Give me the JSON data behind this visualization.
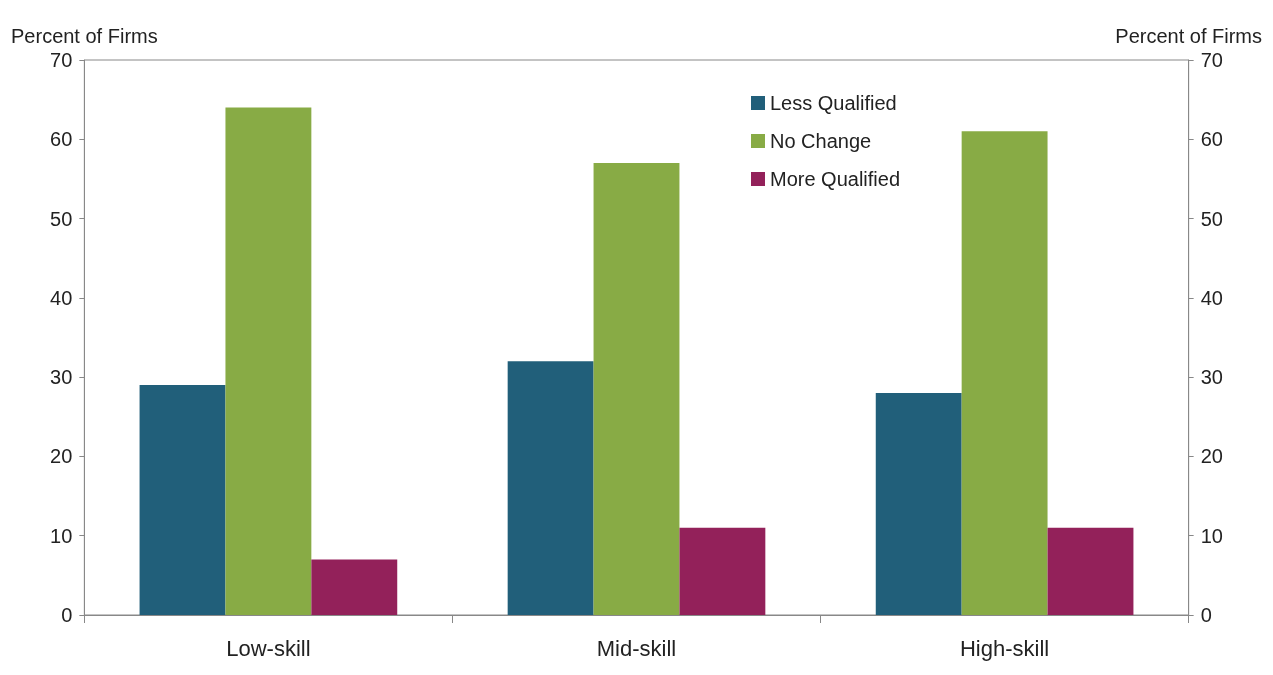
{
  "chart_data": {
    "type": "bar",
    "ylabel": "Percent of Firms",
    "y2label": "Percent of Firms",
    "categories": [
      "Low-skill",
      "Mid-skill",
      "High-skill"
    ],
    "series": [
      {
        "name": "Less Qualified",
        "color": "#215f7a",
        "values": [
          29,
          32,
          28
        ]
      },
      {
        "name": "No Change",
        "color": "#88ab45",
        "values": [
          64,
          57,
          61
        ]
      },
      {
        "name": "More Qualified",
        "color": "#93215a",
        "values": [
          7,
          11,
          11
        ]
      }
    ],
    "ylim": [
      0,
      70
    ],
    "yticks": [
      0,
      10,
      20,
      30,
      40,
      50,
      60,
      70
    ],
    "y2lim": [
      0,
      70
    ],
    "y2ticks": [
      0,
      10,
      20,
      30,
      40,
      50,
      60,
      70
    ],
    "grid": false,
    "legend": "top right"
  }
}
